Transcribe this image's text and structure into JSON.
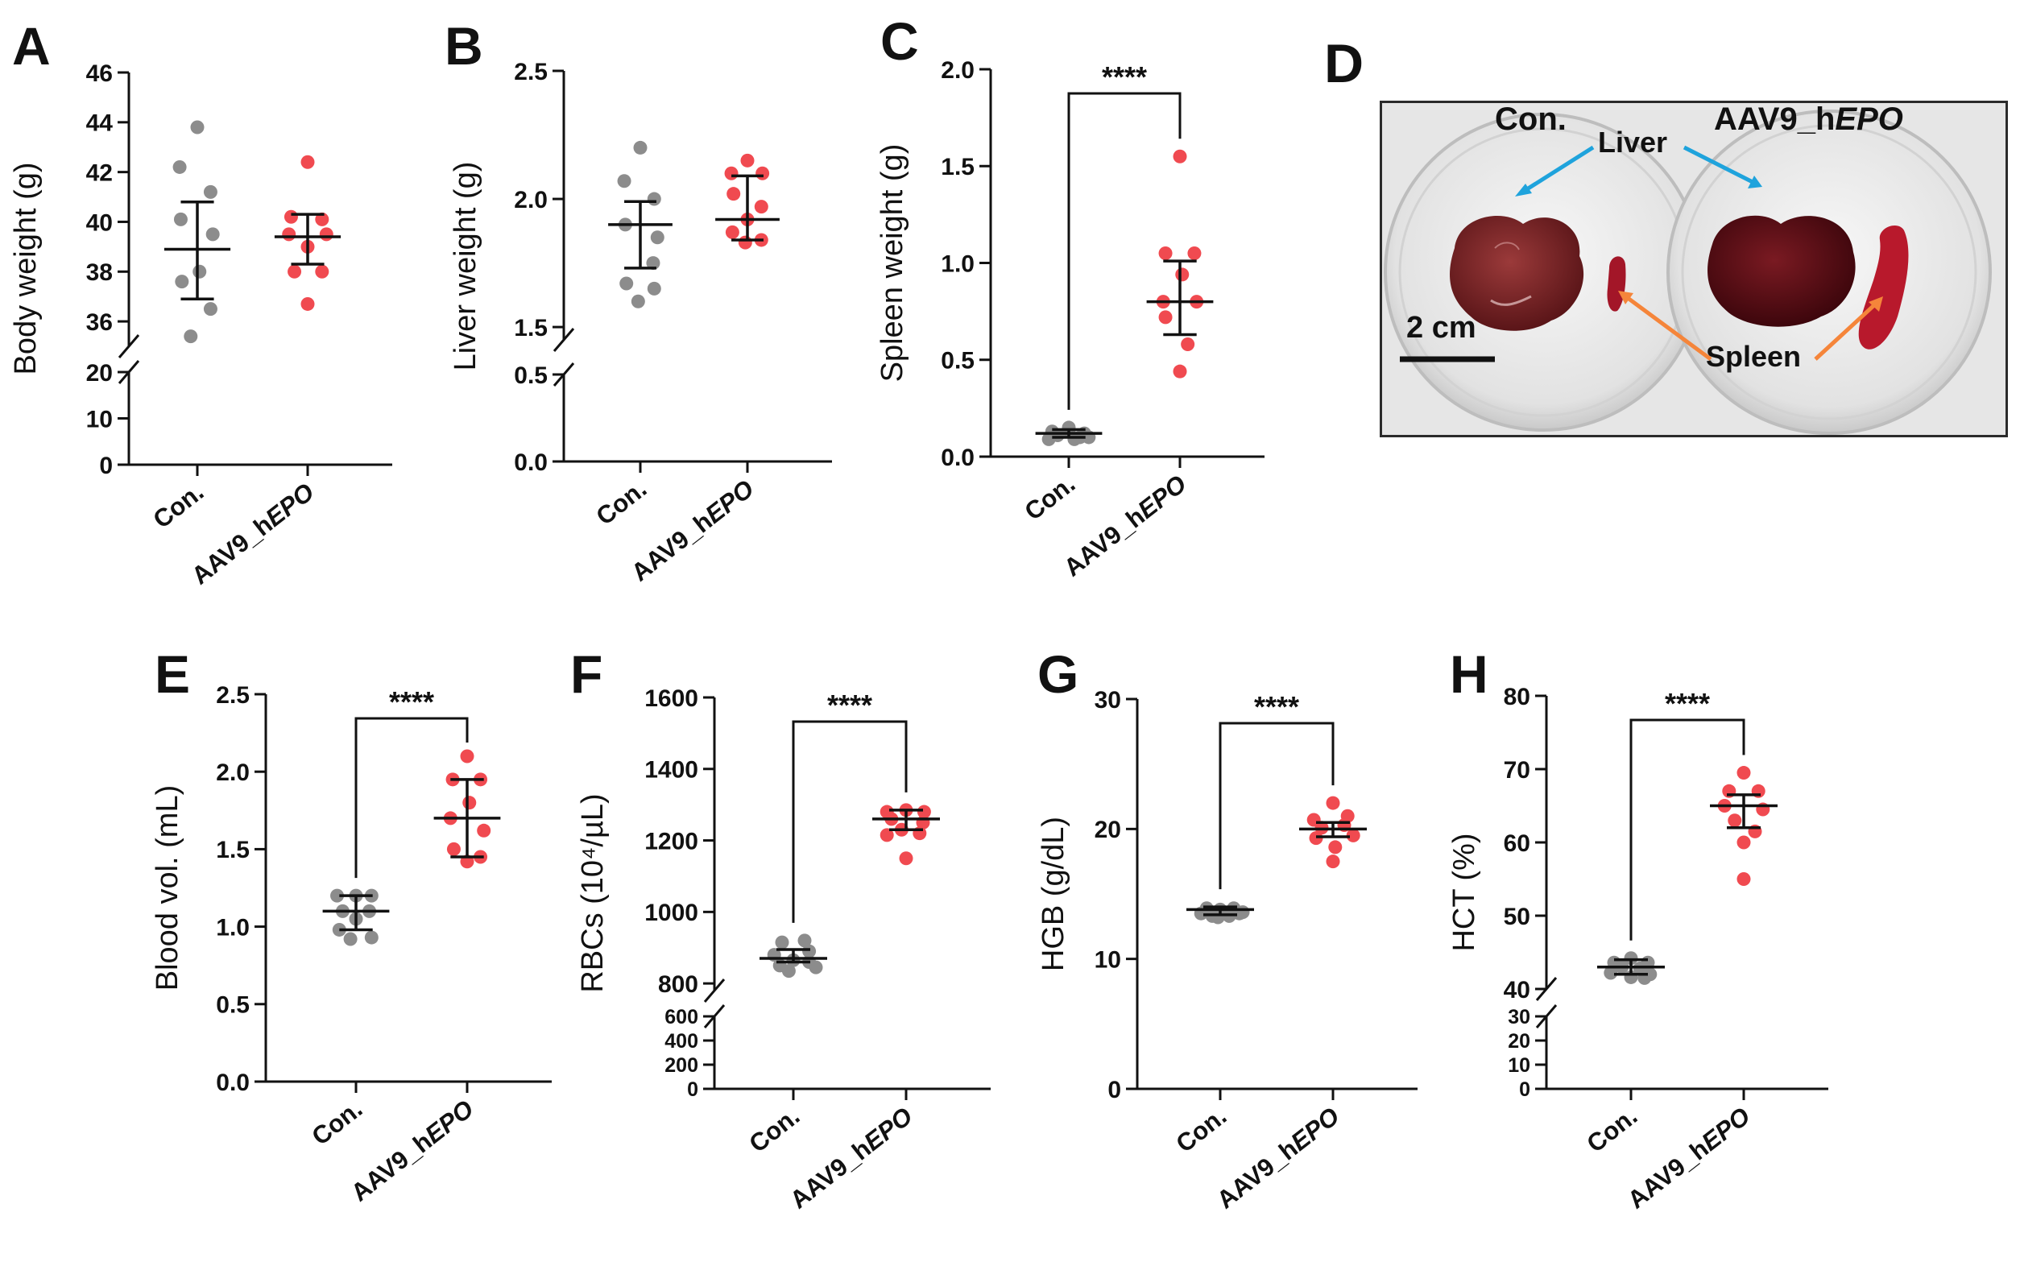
{
  "colors": {
    "control": "#8c8c8c",
    "treatment": "#f04a50",
    "liver_arrow": "#1fa3dc",
    "spleen_arrow": "#f5853a"
  },
  "panel_d": {
    "letter": "D",
    "label_con": "Con.",
    "label_aav_prefix": "AAV9_h",
    "label_aav_suffix": "EPO",
    "liver": "Liver",
    "spleen": "Spleen",
    "scale_bar": "2 cm"
  },
  "chart_data": [
    {
      "type": "scatter",
      "letter": "A",
      "ylabel": "Body weight (g)",
      "significance": "",
      "categories": [
        "Con.",
        "AAV9_hEPO"
      ],
      "broken_axis": true,
      "upper_ylim": [
        35,
        46
      ],
      "upper_ticks": [
        36,
        38,
        40,
        42,
        44,
        46
      ],
      "lower_ylim": [
        0,
        20
      ],
      "lower_ticks": [
        0,
        10,
        20
      ],
      "series": [
        {
          "name": "Con.",
          "mean": 38.9,
          "err": [
            36.9,
            40.8
          ],
          "points": [
            [
              0,
              43.8
            ],
            [
              -0.16,
              42.2
            ],
            [
              0.12,
              41.2
            ],
            [
              -0.15,
              40.1
            ],
            [
              0.14,
              39.5
            ],
            [
              0.02,
              38.0
            ],
            [
              -0.14,
              37.6
            ],
            [
              0.12,
              36.5
            ],
            [
              -0.06,
              35.4
            ]
          ]
        },
        {
          "name": "AAV9_hEPO",
          "mean": 39.4,
          "err": [
            38.3,
            40.3
          ],
          "points": [
            [
              0,
              42.4
            ],
            [
              -0.15,
              40.2
            ],
            [
              0.13,
              40.1
            ],
            [
              -0.17,
              39.5
            ],
            [
              0.17,
              39.5
            ],
            [
              0,
              39.0
            ],
            [
              -0.12,
              38.0
            ],
            [
              0.13,
              38.0
            ],
            [
              0,
              36.7
            ]
          ]
        }
      ]
    },
    {
      "type": "scatter",
      "letter": "B",
      "ylabel": "Liver weight (g)",
      "significance": "",
      "categories": [
        "Con.",
        "AAV9_hEPO"
      ],
      "broken_axis": true,
      "upper_ylim": [
        1.45,
        2.5
      ],
      "upper_ticks": [
        1.5,
        2.0,
        2.5
      ],
      "lower_ylim": [
        0,
        0.5
      ],
      "lower_ticks": [
        0.0,
        0.5
      ],
      "series": [
        {
          "name": "Con.",
          "mean": 1.9,
          "err": [
            1.73,
            1.99
          ],
          "points": [
            [
              0,
              2.2
            ],
            [
              -0.15,
              2.07
            ],
            [
              0.13,
              2.0
            ],
            [
              -0.14,
              1.9
            ],
            [
              0.16,
              1.85
            ],
            [
              0.12,
              1.75
            ],
            [
              -0.13,
              1.67
            ],
            [
              0.13,
              1.65
            ],
            [
              -0.02,
              1.6
            ]
          ]
        },
        {
          "name": "AAV9_hEPO",
          "mean": 1.92,
          "err": [
            1.84,
            2.09
          ],
          "points": [
            [
              0,
              2.15
            ],
            [
              -0.15,
              2.1
            ],
            [
              0.14,
              2.1
            ],
            [
              -0.13,
              2.02
            ],
            [
              0.13,
              1.97
            ],
            [
              0,
              1.92
            ],
            [
              -0.14,
              1.87
            ],
            [
              0.13,
              1.84
            ],
            [
              -0.02,
              1.83
            ]
          ]
        }
      ]
    },
    {
      "type": "scatter",
      "letter": "C",
      "ylabel": "Spleen weight (g)",
      "significance": "****",
      "categories": [
        "Con.",
        "AAV9_hEPO"
      ],
      "broken_axis": false,
      "ylim": [
        0,
        2.0
      ],
      "ticks": [
        0.0,
        0.5,
        1.0,
        1.5,
        2.0
      ],
      "series": [
        {
          "name": "Con.",
          "mean": 0.12,
          "err": [
            0.1,
            0.14
          ],
          "points": [
            [
              0,
              0.15
            ],
            [
              -0.15,
              0.13
            ],
            [
              0.14,
              0.12
            ],
            [
              -0.1,
              0.11
            ],
            [
              0.1,
              0.1
            ],
            [
              0,
              0.13
            ],
            [
              -0.18,
              0.09
            ],
            [
              0.18,
              0.1
            ],
            [
              0.05,
              0.09
            ]
          ]
        },
        {
          "name": "AAV9_hEPO",
          "mean": 0.8,
          "err": [
            0.63,
            1.01
          ],
          "points": [
            [
              0,
              1.55
            ],
            [
              -0.13,
              1.05
            ],
            [
              0.13,
              1.05
            ],
            [
              0.02,
              0.94
            ],
            [
              -0.15,
              0.8
            ],
            [
              0.15,
              0.8
            ],
            [
              -0.13,
              0.72
            ],
            [
              0.07,
              0.58
            ],
            [
              0,
              0.44
            ]
          ]
        }
      ]
    },
    {
      "type": "scatter",
      "letter": "E",
      "ylabel": "Blood vol. (mL)",
      "significance": "****",
      "categories": [
        "Con.",
        "AAV9_hEPO"
      ],
      "broken_axis": false,
      "ylim": [
        0,
        2.5
      ],
      "ticks": [
        0.0,
        0.5,
        1.0,
        1.5,
        2.0,
        2.5
      ],
      "series": [
        {
          "name": "Con.",
          "mean": 1.1,
          "err": [
            0.98,
            1.2
          ],
          "points": [
            [
              0,
              1.2
            ],
            [
              -0.17,
              1.2
            ],
            [
              0.14,
              1.2
            ],
            [
              -0.12,
              1.1
            ],
            [
              0.12,
              1.1
            ],
            [
              0,
              1.05
            ],
            [
              -0.15,
              0.98
            ],
            [
              0.14,
              0.93
            ],
            [
              -0.05,
              0.92
            ]
          ]
        },
        {
          "name": "AAV9_hEPO",
          "mean": 1.7,
          "err": [
            1.45,
            1.95
          ],
          "points": [
            [
              0,
              2.1
            ],
            [
              -0.13,
              1.95
            ],
            [
              0.12,
              1.95
            ],
            [
              0.02,
              1.8
            ],
            [
              -0.15,
              1.7
            ],
            [
              0.15,
              1.62
            ],
            [
              -0.12,
              1.5
            ],
            [
              0.12,
              1.45
            ],
            [
              0,
              1.42
            ]
          ]
        }
      ]
    },
    {
      "type": "scatter",
      "letter": "F",
      "ylabel": "RBCs (10⁴/µL)",
      "significance": "****",
      "categories": [
        "Con.",
        "AAV9_hEPO"
      ],
      "broken_axis": true,
      "upper_ylim": [
        780,
        1600
      ],
      "upper_ticks": [
        800,
        1000,
        1200,
        1400,
        1600
      ],
      "lower_ylim": [
        0,
        600
      ],
      "lower_ticks": [
        0,
        200,
        400,
        600
      ],
      "series": [
        {
          "name": "Con.",
          "mean": 870,
          "err": [
            860,
            895
          ],
          "points": [
            [
              -0.1,
              915
            ],
            [
              0.1,
              920
            ],
            [
              -0.17,
              880
            ],
            [
              0.14,
              890
            ],
            [
              0,
              865
            ],
            [
              -0.12,
              850
            ],
            [
              0.14,
              860
            ],
            [
              -0.04,
              835
            ],
            [
              0.2,
              845
            ]
          ]
        },
        {
          "name": "AAV9_hEPO",
          "mean": 1260,
          "err": [
            1230,
            1285
          ],
          "points": [
            [
              -0.17,
              1280
            ],
            [
              0,
              1285
            ],
            [
              0.16,
              1280
            ],
            [
              -0.13,
              1260
            ],
            [
              0.15,
              1250
            ],
            [
              -0.04,
              1230
            ],
            [
              0.12,
              1220
            ],
            [
              -0.17,
              1215
            ],
            [
              0,
              1150
            ]
          ]
        }
      ]
    },
    {
      "type": "scatter",
      "letter": "G",
      "ylabel": "HGB (g/dL)",
      "significance": "****",
      "categories": [
        "Con.",
        "AAV9_hEPO"
      ],
      "broken_axis": false,
      "ylim": [
        0,
        30
      ],
      "ticks": [
        0,
        10,
        20,
        30
      ],
      "series": [
        {
          "name": "Con.",
          "mean": 13.8,
          "err": [
            13.4,
            14.0
          ],
          "points": [
            [
              -0.12,
              13.9
            ],
            [
              0.12,
              13.9
            ],
            [
              0,
              13.8
            ],
            [
              -0.17,
              13.5
            ],
            [
              0.17,
              13.5
            ],
            [
              -0.07,
              13.3
            ],
            [
              0.08,
              13.3
            ],
            [
              -0.02,
              13.2
            ],
            [
              0.2,
              13.6
            ]
          ]
        },
        {
          "name": "AAV9_hEPO",
          "mean": 20,
          "err": [
            19.4,
            20.5
          ],
          "points": [
            [
              0,
              22
            ],
            [
              -0.17,
              20.7
            ],
            [
              0.13,
              21
            ],
            [
              0.1,
              20.3
            ],
            [
              -0.1,
              20.1
            ],
            [
              0.18,
              19.5
            ],
            [
              -0.15,
              19.3
            ],
            [
              0.02,
              18.6
            ],
            [
              0,
              17.5
            ]
          ]
        }
      ]
    },
    {
      "type": "scatter",
      "letter": "H",
      "ylabel": "HCT (%)",
      "significance": "****",
      "categories": [
        "Con.",
        "AAV9_hEPO"
      ],
      "broken_axis": true,
      "upper_ylim": [
        40,
        80
      ],
      "upper_ticks": [
        40,
        50,
        60,
        70,
        80
      ],
      "lower_ylim": [
        0,
        30
      ],
      "lower_ticks": [
        0,
        10,
        20,
        30
      ],
      "series": [
        {
          "name": "Con.",
          "mean": 43,
          "err": [
            42,
            44
          ],
          "points": [
            [
              0,
              44.2
            ],
            [
              -0.15,
              43.6
            ],
            [
              0.15,
              43.6
            ],
            [
              -0.08,
              43
            ],
            [
              0.08,
              42.8
            ],
            [
              -0.18,
              42.2
            ],
            [
              0.17,
              42
            ],
            [
              0,
              41.6
            ],
            [
              0.12,
              41.5
            ]
          ]
        },
        {
          "name": "AAV9_hEPO",
          "mean": 65,
          "err": [
            62,
            66.5
          ],
          "points": [
            [
              0,
              69.5
            ],
            [
              -0.13,
              67
            ],
            [
              0.13,
              67
            ],
            [
              -0.17,
              65
            ],
            [
              0.17,
              64.5
            ],
            [
              -0.08,
              63
            ],
            [
              0.1,
              61.5
            ],
            [
              0,
              60
            ],
            [
              0,
              55
            ]
          ]
        }
      ]
    }
  ]
}
